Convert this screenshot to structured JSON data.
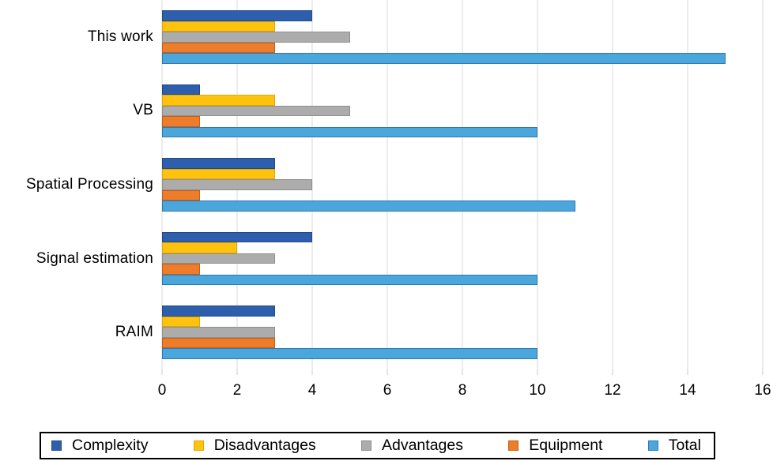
{
  "chart_data": {
    "type": "bar",
    "orientation": "horizontal",
    "title": "",
    "xlabel": "",
    "ylabel": "",
    "grid": "vertical",
    "legend_position": "bottom",
    "xlim": [
      0,
      16
    ],
    "xticks": [
      0,
      2,
      4,
      6,
      8,
      10,
      12,
      14,
      16
    ],
    "categories": [
      "This work",
      "VB",
      "Spatial Processing",
      "Signal estimation",
      "RAIM"
    ],
    "series": [
      {
        "name": "Complexity",
        "color": "#2E5FAC",
        "border_color": "#24498A",
        "values": [
          4,
          1,
          3,
          4,
          3
        ]
      },
      {
        "name": "Disadvantages",
        "color": "#FFC30F",
        "border_color": "#E0A800",
        "values": [
          3,
          3,
          3,
          2,
          1
        ]
      },
      {
        "name": "Advantages",
        "color": "#ACACAC",
        "border_color": "#8F8F8F",
        "values": [
          5,
          5,
          4,
          3,
          3
        ]
      },
      {
        "name": "Equipment",
        "color": "#ED7D2B",
        "border_color": "#C55F14",
        "values": [
          3,
          1,
          1,
          1,
          3
        ]
      },
      {
        "name": "Total",
        "color": "#4BA6DB",
        "border_color": "#2E79B5",
        "values": [
          15,
          10,
          11,
          10,
          10
        ]
      }
    ]
  },
  "colors": {
    "background": "#FFFFFF",
    "gridline": "#D9D9D9",
    "tick": "#C8C8C8",
    "text": "#000000",
    "legend_border": "#000000"
  }
}
